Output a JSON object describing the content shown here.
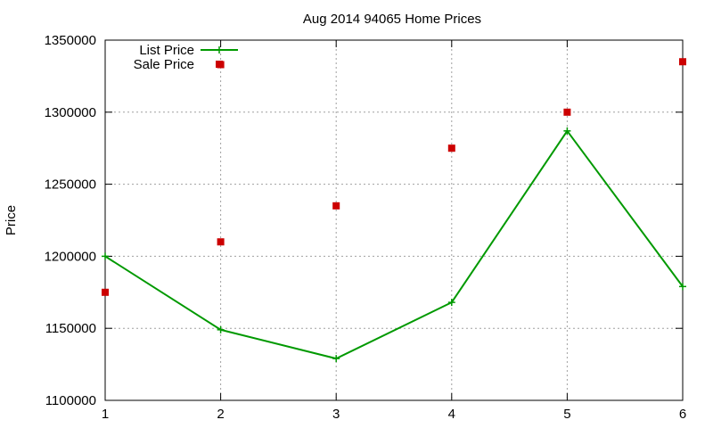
{
  "chart_data": {
    "type": "line",
    "title": "Aug 2014 94065 Home Prices",
    "xlabel": "",
    "ylabel": "Price",
    "x": [
      1,
      2,
      3,
      4,
      5,
      6
    ],
    "xlim": [
      1,
      6
    ],
    "ylim": [
      1100000,
      1350000
    ],
    "x_ticks": [
      "1",
      "2",
      "3",
      "4",
      "5",
      "6"
    ],
    "y_ticks": [
      "1100000",
      "1150000",
      "1200000",
      "1250000",
      "1300000",
      "1350000"
    ],
    "grid": true,
    "legend_position": "top-left",
    "series": [
      {
        "name": "List Price",
        "style": "line-with-plus-markers",
        "color": "#009900",
        "values": [
          1200000,
          1149000,
          1129000,
          1168000,
          1287000,
          1179000
        ]
      },
      {
        "name": "Sale Price",
        "style": "square-markers",
        "color": "#cc0000",
        "values": [
          1175000,
          1210000,
          1235000,
          1275000,
          1300000,
          1335000
        ]
      }
    ],
    "series_extra_points": [
      {
        "series": "Sale Price",
        "x": 2,
        "y": 1333000
      }
    ]
  }
}
